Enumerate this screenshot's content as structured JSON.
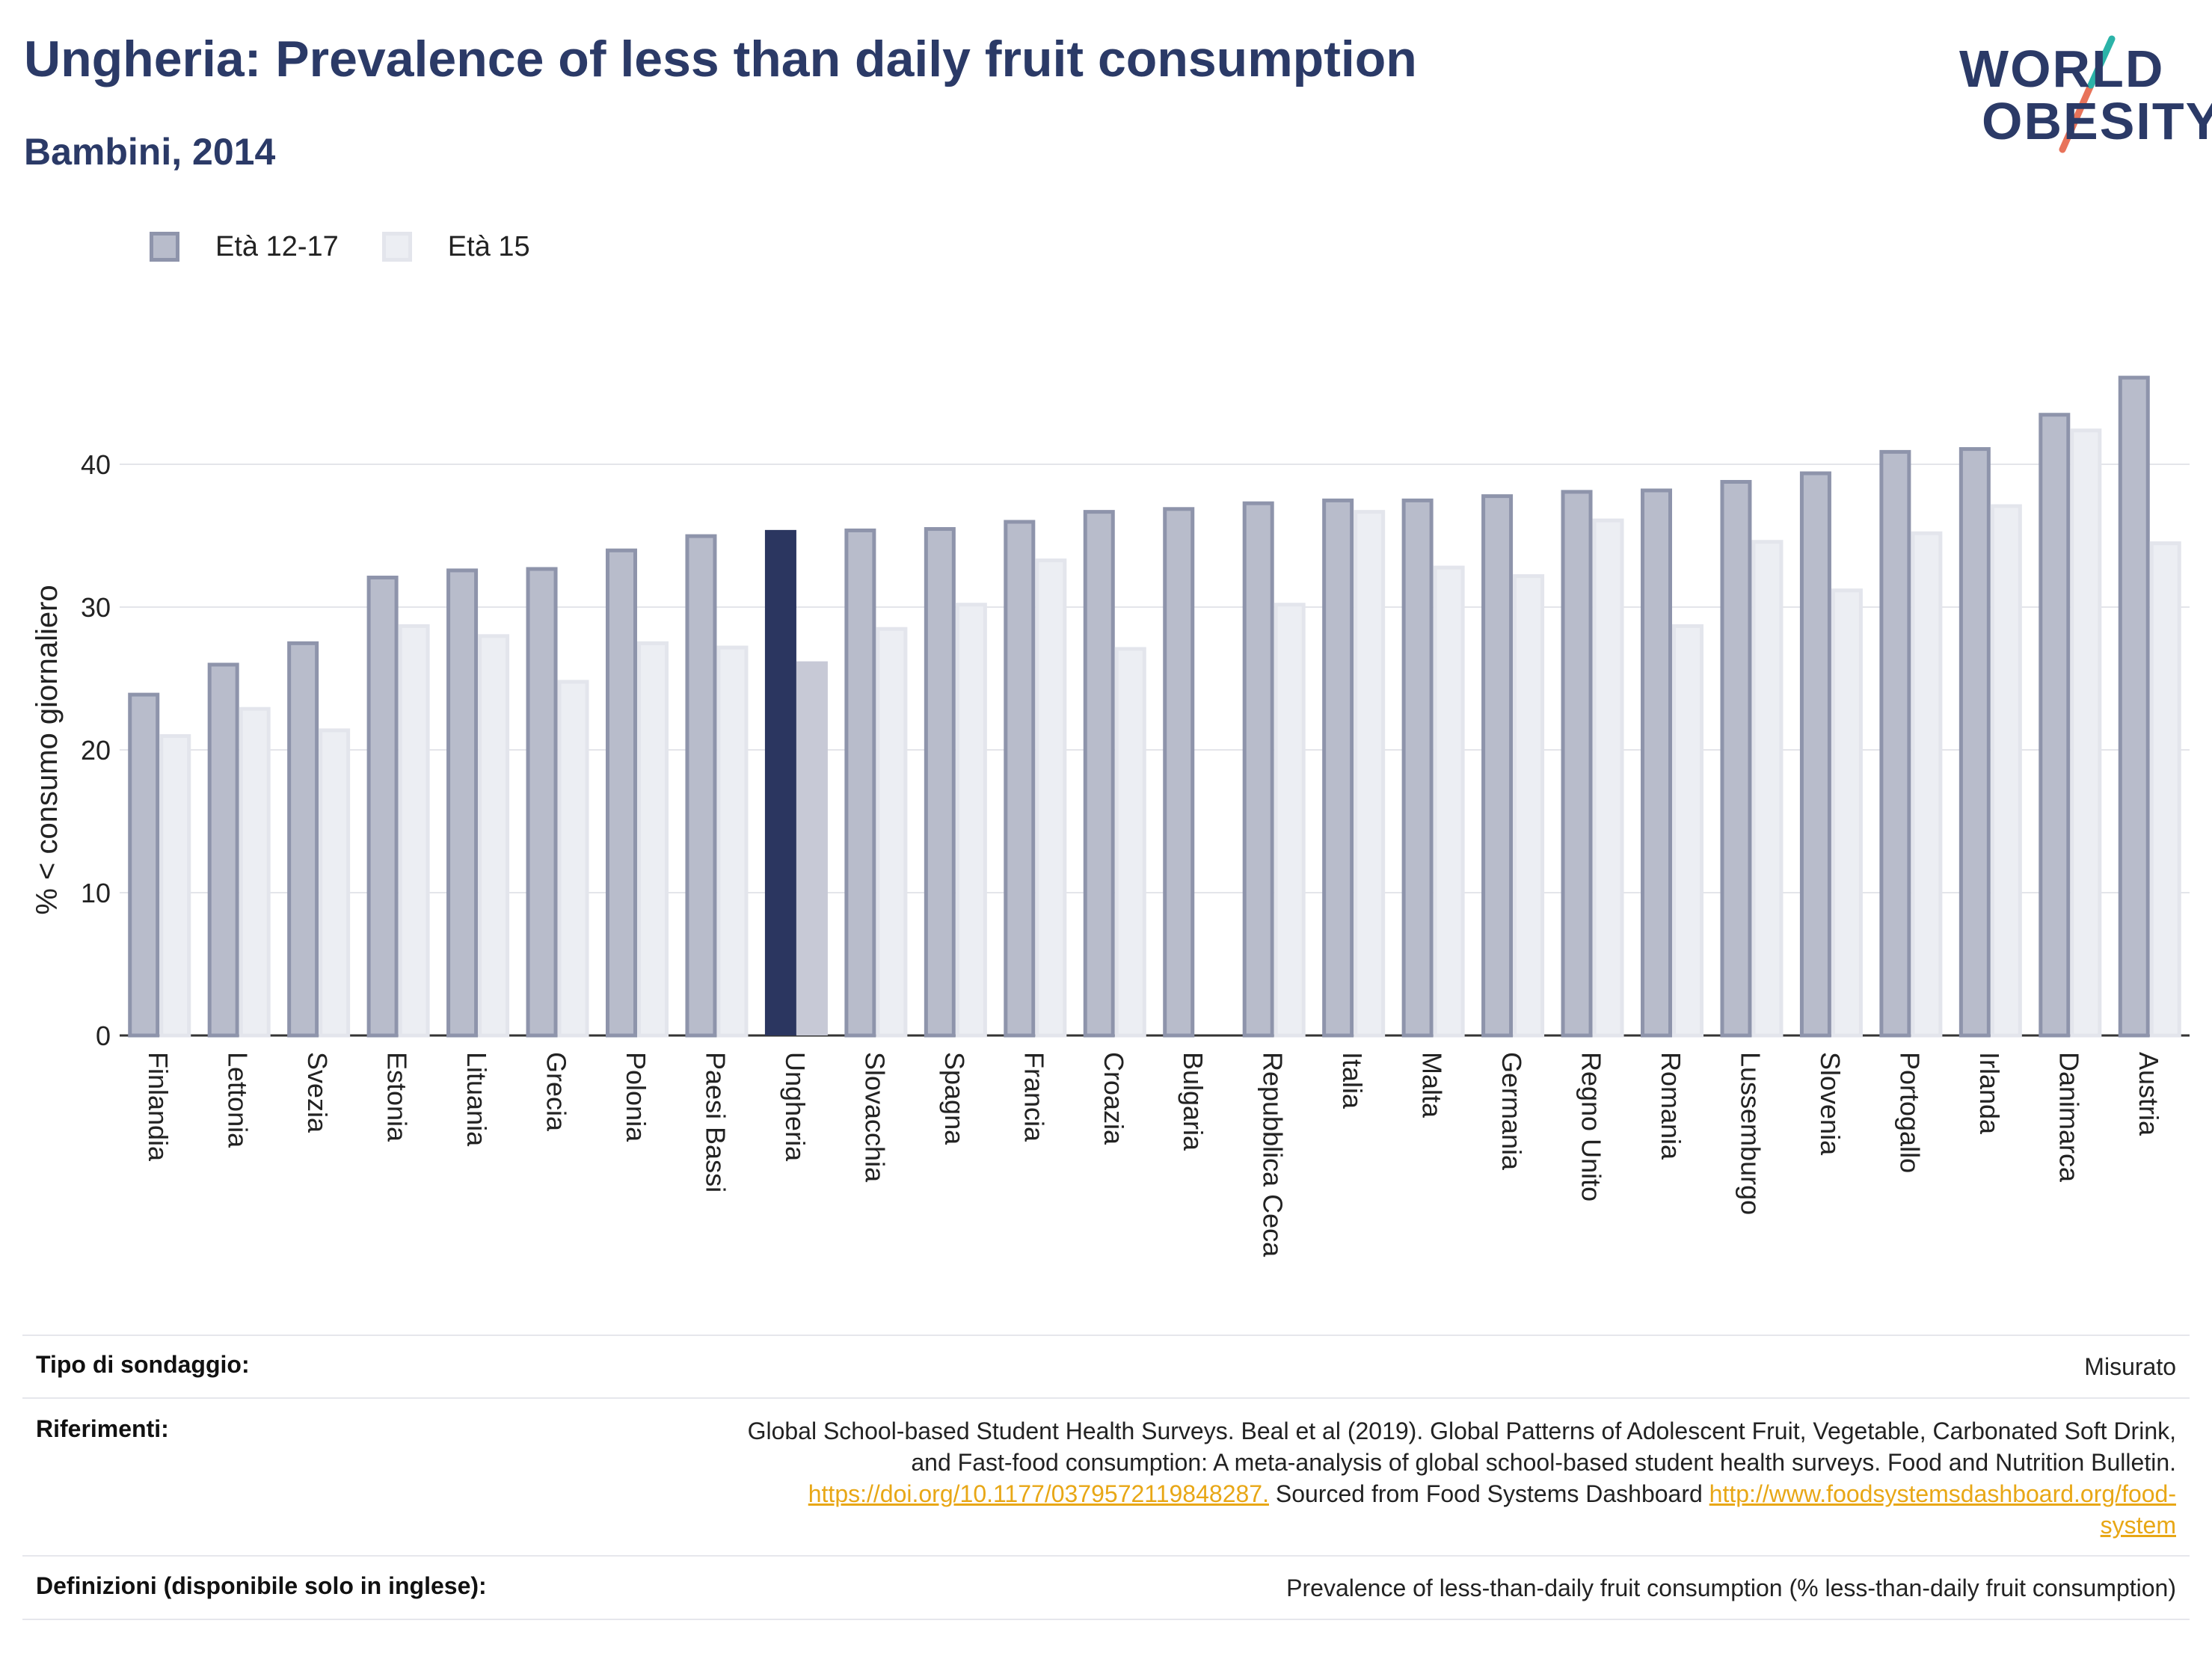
{
  "header": {
    "title": "Ungheria: Prevalence of less than daily fruit consumption",
    "subtitle": "Bambini, 2014"
  },
  "logo": {
    "line1": "WORLD",
    "line2": "OBESITY"
  },
  "colors": {
    "series_a_fill": "#b8bccb",
    "series_a_stroke": "#8e94ab",
    "series_b_fill": "#eceef3",
    "series_b_stroke": "#e3e5ec",
    "highlight_a": "#2b3660",
    "highlight_b": "#c7c9d6",
    "title": "#2b3a67",
    "link": "#e8a716"
  },
  "chart_data": {
    "type": "bar",
    "ylabel": "% < consumo giornaliero",
    "xlabel": "",
    "ylim": [
      0,
      50
    ],
    "yticks": [
      0,
      10,
      20,
      30,
      40
    ],
    "grid": true,
    "legend_position": "top-left",
    "highlight": "Ungheria",
    "categories": [
      "Finlandia",
      "Lettonia",
      "Svezia",
      "Estonia",
      "Lituania",
      "Grecia",
      "Polonia",
      "Paesi Bassi",
      "Ungheria",
      "Slovacchia",
      "Spagna",
      "Francia",
      "Croazia",
      "Bulgaria",
      "Repubblica Ceca",
      "Italia",
      "Malta",
      "Germania",
      "Regno Unito",
      "Romania",
      "Lussemburgo",
      "Slovenia",
      "Portogallo",
      "Irlanda",
      "Danimarca",
      "Austria"
    ],
    "series": [
      {
        "name": "Età 12-17",
        "values": [
          24,
          26.1,
          27.6,
          32.2,
          32.7,
          32.8,
          34.1,
          35.1,
          35.4,
          35.5,
          35.6,
          36.1,
          36.8,
          37,
          37.4,
          37.6,
          37.6,
          37.9,
          38.2,
          38.3,
          38.9,
          39.5,
          41,
          41.2,
          43.6,
          46.2
        ]
      },
      {
        "name": "Età 15",
        "values": [
          21.1,
          23,
          21.5,
          28.8,
          28.1,
          24.9,
          27.6,
          27.3,
          26.2,
          28.6,
          30.3,
          33.4,
          27.2,
          null,
          30.3,
          36.8,
          32.9,
          32.3,
          36.2,
          28.8,
          34.7,
          31.3,
          35.3,
          37.2,
          42.5,
          34.6
        ]
      }
    ]
  },
  "meta": {
    "survey_type_label": "Tipo di sondaggio:",
    "survey_type_value": "Misurato",
    "references_label": "Riferimenti:",
    "references_line1": "Global School-based Student Health Surveys. Beal et al (2019). Global Patterns of Adolescent Fruit, Vegetable, Carbonated Soft Drink,",
    "references_line2": "and Fast-food consumption: A meta-analysis of global school-based student health surveys. Food and Nutrition Bulletin.",
    "references_link1": "https://doi.org/10.1177/0379572119848287.",
    "references_mid": " Sourced from Food Systems Dashboard ",
    "references_link2a": "http://www.foodsystemsdashboard.org/food-",
    "references_link2b": "system",
    "definitions_label": "Definizioni (disponibile solo in inglese):",
    "definitions_value": "Prevalence of less-than-daily fruit consumption (% less-than-daily fruit consumption)"
  }
}
